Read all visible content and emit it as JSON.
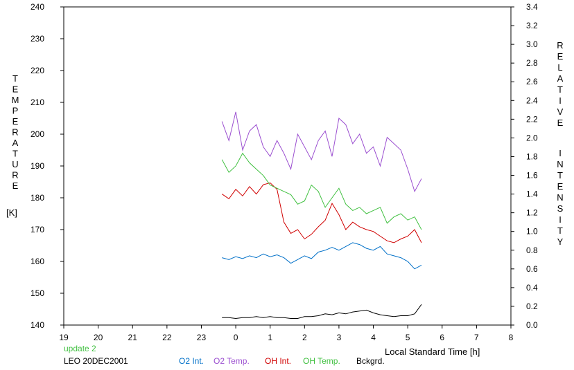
{
  "chart_data": {
    "type": "line",
    "x_label": "Local Standard Time [h]",
    "x_ticks": [
      "19",
      "20",
      "21",
      "22",
      "23",
      "0",
      "1",
      "2",
      "3",
      "4",
      "5",
      "6",
      "7",
      "8"
    ],
    "x_range": [
      19,
      32
    ],
    "y_left": {
      "label_letters": [
        "T",
        "E",
        "M",
        "P",
        "E",
        "R",
        "A",
        "T",
        "U",
        "R",
        "E"
      ],
      "unit": "[K]",
      "range": [
        140,
        240
      ],
      "ticks": [
        "140",
        "150",
        "160",
        "170",
        "180",
        "190",
        "200",
        "210",
        "220",
        "230",
        "240"
      ]
    },
    "y_right": {
      "label_letters": [
        "R",
        "E",
        "L",
        "A",
        "T",
        "I",
        "V",
        "E",
        "I",
        "N",
        "T",
        "E",
        "N",
        "S",
        "I",
        "T",
        "Y"
      ],
      "range": [
        0,
        3.4
      ],
      "ticks": [
        "0.0",
        "0.2",
        "0.4",
        "0.6",
        "0.8",
        "1.0",
        "1.2",
        "1.4",
        "1.6",
        "1.8",
        "2.0",
        "2.2",
        "2.4",
        "2.6",
        "2.8",
        "3.0",
        "3.2",
        "3.4"
      ]
    },
    "update_text": "update 2",
    "station_text": "LEO 20DEC2001",
    "series": [
      {
        "name": "O2 Int.",
        "color": "#0070c8",
        "axis": "right",
        "x": [
          23.6,
          23.8,
          24.0,
          24.2,
          24.4,
          24.6,
          24.8,
          25.0,
          25.2,
          25.4,
          25.6,
          25.8,
          26.0,
          26.2,
          26.4,
          26.6,
          26.8,
          27.0,
          27.2,
          27.4,
          27.6,
          27.8,
          28.0,
          28.2,
          28.4,
          28.6,
          28.8,
          29.0,
          29.2,
          29.4
        ],
        "y": [
          0.72,
          0.7,
          0.73,
          0.71,
          0.74,
          0.72,
          0.76,
          0.73,
          0.75,
          0.72,
          0.66,
          0.7,
          0.74,
          0.71,
          0.78,
          0.8,
          0.83,
          0.8,
          0.84,
          0.88,
          0.86,
          0.82,
          0.8,
          0.84,
          0.76,
          0.74,
          0.72,
          0.68,
          0.6,
          0.64
        ]
      },
      {
        "name": "O2 Temp.",
        "color": "#9b4fd0",
        "axis": "left",
        "x": [
          23.6,
          23.8,
          24.0,
          24.2,
          24.4,
          24.6,
          24.8,
          25.0,
          25.2,
          25.4,
          25.6,
          25.8,
          26.0,
          26.2,
          26.4,
          26.6,
          26.8,
          27.0,
          27.2,
          27.4,
          27.6,
          27.8,
          28.0,
          28.2,
          28.4,
          28.6,
          28.8,
          29.0,
          29.2,
          29.4
        ],
        "y": [
          204,
          198,
          207,
          195,
          201,
          203,
          196,
          193,
          198,
          194,
          189,
          200,
          196,
          192,
          198,
          201,
          193,
          205,
          203,
          197,
          200,
          194,
          196,
          190,
          199,
          197,
          195,
          189,
          182,
          186
        ]
      },
      {
        "name": "OH Int.",
        "color": "#d00000",
        "axis": "right",
        "x": [
          23.6,
          23.8,
          24.0,
          24.2,
          24.4,
          24.6,
          24.8,
          25.0,
          25.2,
          25.4,
          25.6,
          25.8,
          26.0,
          26.2,
          26.4,
          26.6,
          26.8,
          27.0,
          27.2,
          27.4,
          27.6,
          27.8,
          28.0,
          28.2,
          28.4,
          28.6,
          28.8,
          29.0,
          29.2,
          29.4
        ],
        "y": [
          1.4,
          1.35,
          1.45,
          1.38,
          1.48,
          1.4,
          1.5,
          1.52,
          1.45,
          1.1,
          0.98,
          1.02,
          0.92,
          0.97,
          1.05,
          1.12,
          1.3,
          1.18,
          1.02,
          1.1,
          1.05,
          1.02,
          1.0,
          0.95,
          0.9,
          0.88,
          0.92,
          0.95,
          1.02,
          0.88
        ]
      },
      {
        "name": "OH Temp.",
        "color": "#40c040",
        "axis": "left",
        "x": [
          23.6,
          23.8,
          24.0,
          24.2,
          24.4,
          24.6,
          24.8,
          25.0,
          25.2,
          25.4,
          25.6,
          25.8,
          26.0,
          26.2,
          26.4,
          26.6,
          26.8,
          27.0,
          27.2,
          27.4,
          27.6,
          27.8,
          28.0,
          28.2,
          28.4,
          28.6,
          28.8,
          29.0,
          29.2,
          29.4
        ],
        "y": [
          192,
          188,
          190,
          194,
          191,
          189,
          187,
          184,
          183,
          182,
          181,
          178,
          179,
          184,
          182,
          177,
          180,
          183,
          178,
          176,
          177,
          175,
          176,
          177,
          172,
          174,
          175,
          173,
          174,
          170
        ]
      },
      {
        "name": "Bckgrd.",
        "color": "#000000",
        "axis": "right",
        "x": [
          23.6,
          23.8,
          24.0,
          24.2,
          24.4,
          24.6,
          24.8,
          25.0,
          25.2,
          25.4,
          25.6,
          25.8,
          26.0,
          26.2,
          26.4,
          26.6,
          26.8,
          27.0,
          27.2,
          27.4,
          27.6,
          27.8,
          28.0,
          28.2,
          28.4,
          28.6,
          28.8,
          29.0,
          29.2,
          29.4
        ],
        "y": [
          0.08,
          0.08,
          0.07,
          0.08,
          0.08,
          0.09,
          0.08,
          0.09,
          0.08,
          0.08,
          0.07,
          0.07,
          0.09,
          0.09,
          0.1,
          0.12,
          0.11,
          0.13,
          0.12,
          0.14,
          0.15,
          0.16,
          0.13,
          0.11,
          0.1,
          0.09,
          0.1,
          0.1,
          0.12,
          0.22
        ]
      }
    ]
  }
}
